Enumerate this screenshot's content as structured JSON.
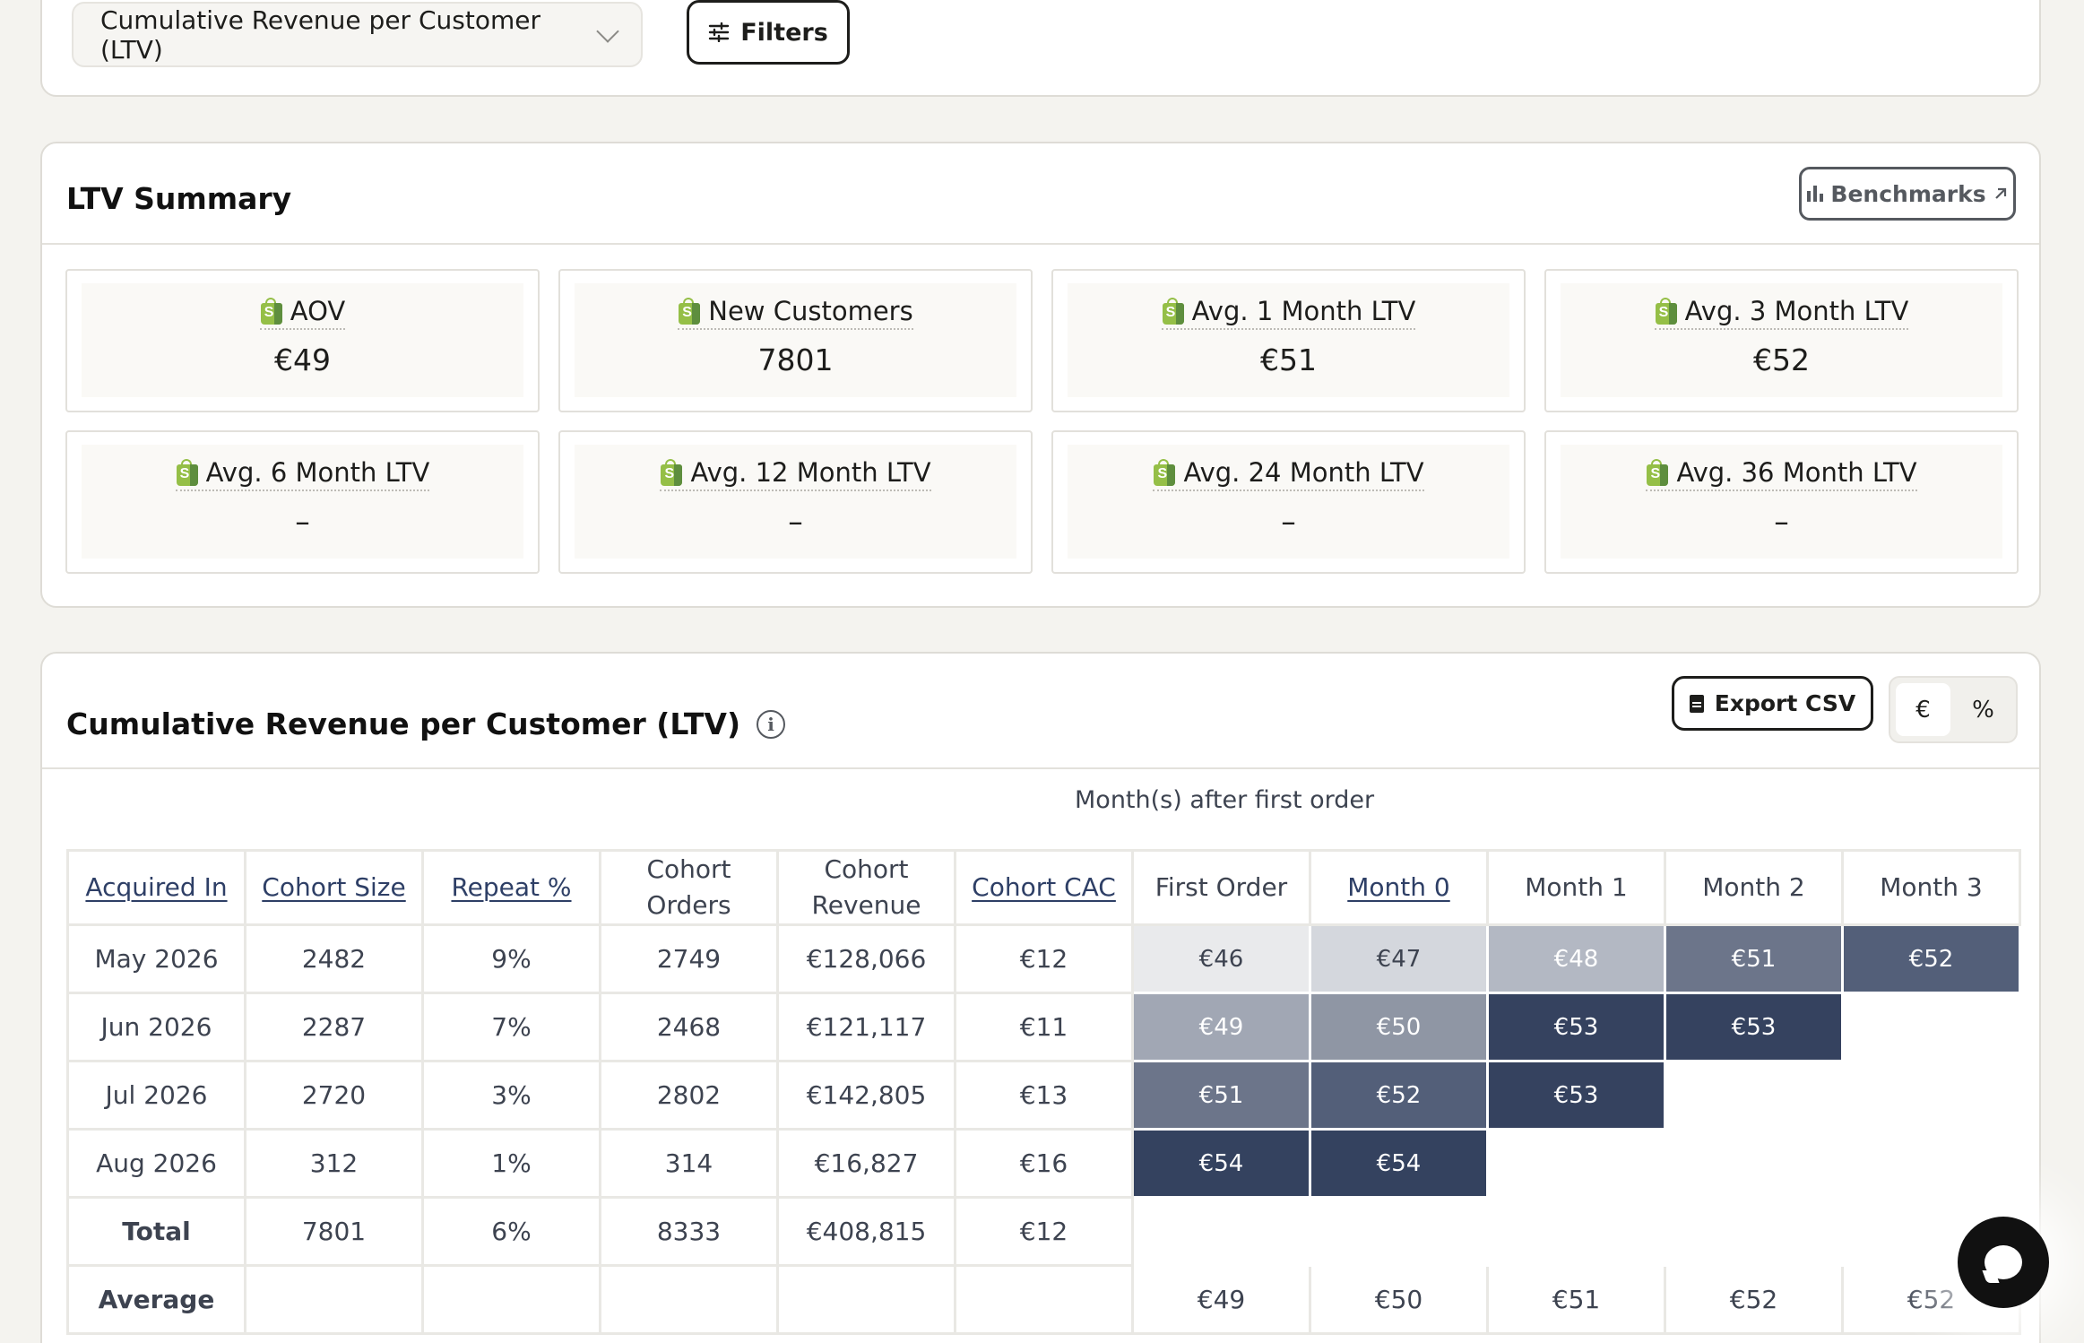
{
  "topbar": {
    "metric_select": "Cumulative Revenue per Customer (LTV)",
    "filters_label": "Filters"
  },
  "summary": {
    "title": "LTV Summary",
    "benchmarks_label": "Benchmarks",
    "metrics": [
      {
        "label": "AOV",
        "value": "€49"
      },
      {
        "label": "New Customers",
        "value": "7801"
      },
      {
        "label": "Avg. 1 Month LTV",
        "value": "€51"
      },
      {
        "label": "Avg. 3 Month LTV",
        "value": "€52"
      },
      {
        "label": "Avg. 6 Month LTV",
        "value": "–"
      },
      {
        "label": "Avg. 12 Month LTV",
        "value": "–"
      },
      {
        "label": "Avg. 24 Month LTV",
        "value": "–"
      },
      {
        "label": "Avg. 36 Month LTV",
        "value": "–"
      }
    ]
  },
  "ltv_table": {
    "title": "Cumulative Revenue per Customer (LTV)",
    "export_label": "Export CSV",
    "toggle": {
      "currency": "€",
      "percent": "%",
      "active": "currency"
    },
    "caption": "Month(s) after first order",
    "headers": [
      "Acquired In",
      "Cohort Size",
      "Repeat %",
      "Cohort Orders",
      "Cohort Revenue",
      "Cohort CAC",
      "First Order",
      "Month 0",
      "Month 1",
      "Month 2",
      "Month 3"
    ],
    "rows": [
      {
        "acquired": "May 2026",
        "size": "2482",
        "repeat": "9%",
        "orders": "2749",
        "revenue": "€128,066",
        "cac": "€12",
        "months": [
          "€46",
          "€47",
          "€48",
          "€51",
          "€52"
        ]
      },
      {
        "acquired": "Jun 2026",
        "size": "2287",
        "repeat": "7%",
        "orders": "2468",
        "revenue": "€121,117",
        "cac": "€11",
        "months": [
          "€49",
          "€50",
          "€53",
          "€53"
        ]
      },
      {
        "acquired": "Jul 2026",
        "size": "2720",
        "repeat": "3%",
        "orders": "2802",
        "revenue": "€142,805",
        "cac": "€13",
        "months": [
          "€51",
          "€52",
          "€53"
        ]
      },
      {
        "acquired": "Aug 2026",
        "size": "312",
        "repeat": "1%",
        "orders": "314",
        "revenue": "€16,827",
        "cac": "€16",
        "months": [
          "€54",
          "€54"
        ]
      }
    ],
    "total": {
      "label": "Total",
      "size": "7801",
      "repeat": "6%",
      "orders": "8333",
      "revenue": "€408,815",
      "cac": "€12"
    },
    "average": {
      "label": "Average",
      "months": [
        "€49",
        "€50",
        "€51",
        "€52",
        "€52"
      ]
    },
    "heat_colors": {
      "€46": "#e9eaec",
      "€47": "#d4d7dd",
      "€48": "#b3b8c3",
      "€49": "#a1a7b4",
      "€50": "#8f96a4",
      "€51": "#6c758a",
      "€52": "#535f79",
      "€53": "#35425f",
      "€54": "#34425f"
    },
    "heat_text_dark": [
      "€46",
      "€47"
    ]
  },
  "colors": {
    "accent": "#2e3f66",
    "background": "#f4f3ef",
    "shopify_green": "#95bf47"
  }
}
